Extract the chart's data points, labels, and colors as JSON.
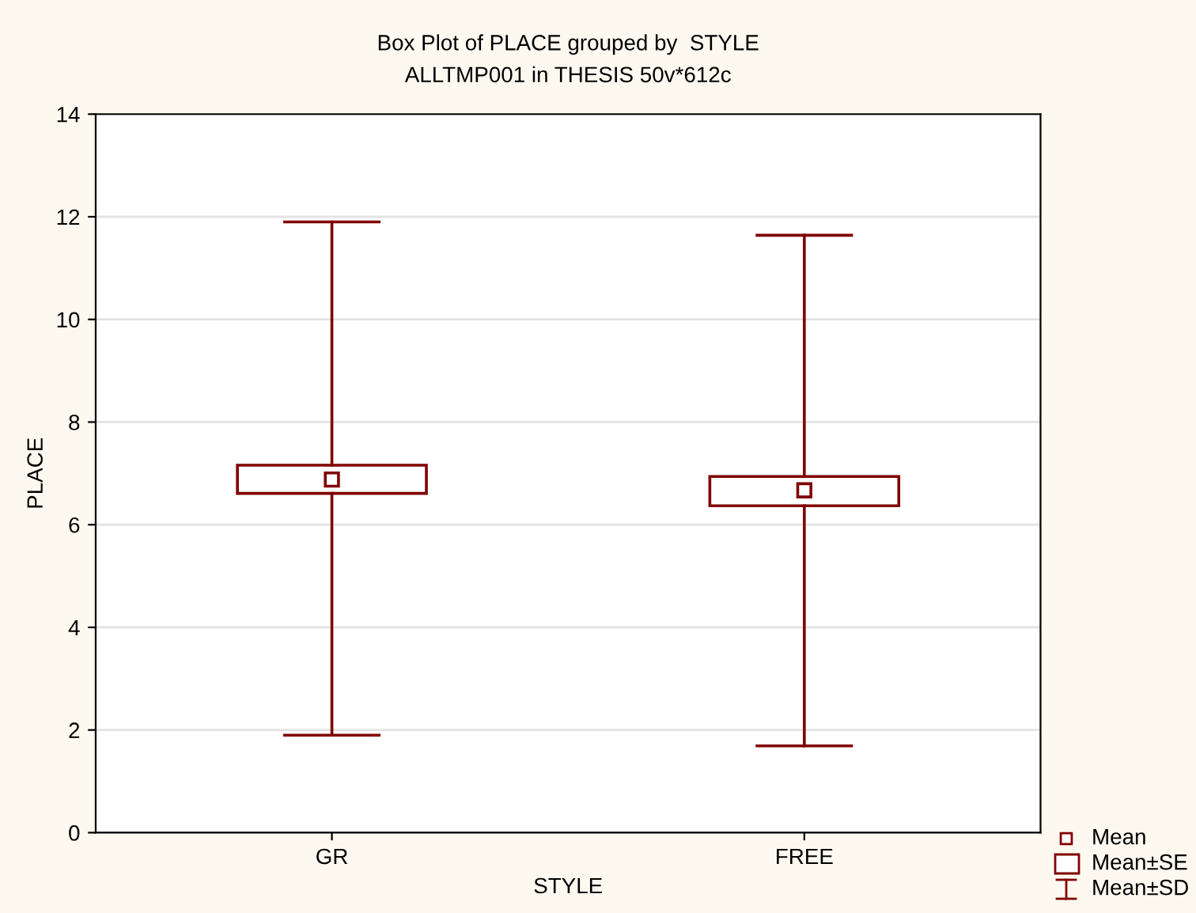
{
  "chart_data": {
    "type": "box",
    "title": "Box Plot of PLACE grouped by  STYLE",
    "subtitle": "ALLTMP001 in THESIS 50v*612c",
    "xlabel": "STYLE",
    "ylabel": "PLACE",
    "categories": [
      "GR",
      "FREE"
    ],
    "color": "#800000",
    "boxes": [
      {
        "low": 1.9,
        "q1": 6.61,
        "q3": 7.16,
        "high": 11.9,
        "mean": 6.88
      },
      {
        "low": 1.69,
        "q1": 6.37,
        "q3": 6.94,
        "high": 11.64,
        "mean": 6.67
      }
    ],
    "annotations": [
      "Mean",
      "Mean±SE",
      "Mean±SD"
    ],
    "ylim": [
      0,
      14
    ],
    "yticks": [
      0,
      2,
      4,
      6,
      8,
      10,
      12,
      14
    ],
    "grid": "y"
  }
}
